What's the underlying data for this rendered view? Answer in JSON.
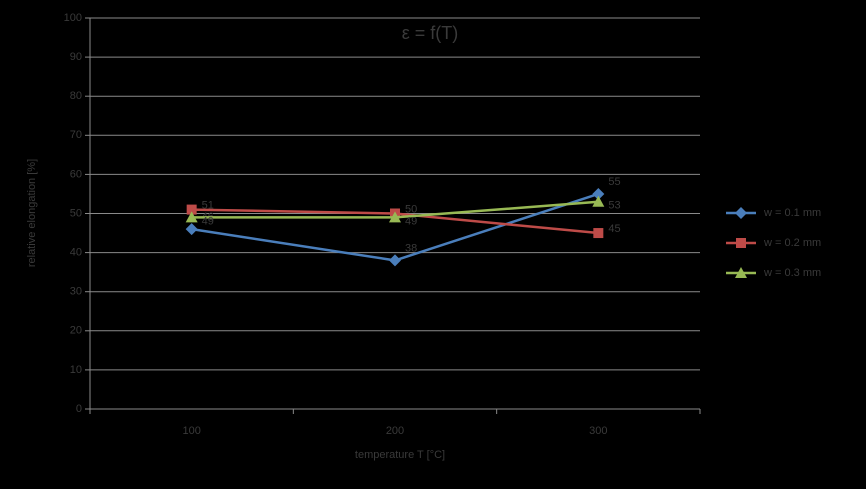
{
  "chart_data": {
    "type": "line",
    "title": "ε = f(T)",
    "x_label": "temperature T [°C]",
    "y_label": "relative elongation [%]",
    "categories": [
      "100",
      "200",
      "300"
    ],
    "series": [
      {
        "name": "w = 0.1 mm",
        "color": "#4a7ebb",
        "marker": "diamond",
        "values": [
          46,
          38,
          55
        ]
      },
      {
        "name": "w = 0.2 mm",
        "color": "#be4b48",
        "marker": "square",
        "values": [
          51,
          50,
          45
        ]
      },
      {
        "name": "w = 0.3 mm",
        "color": "#98b954",
        "marker": "triangle",
        "values": [
          49,
          49,
          53
        ]
      }
    ],
    "ylim": [
      0,
      100
    ],
    "yticks": [
      0,
      10,
      20,
      30,
      40,
      50,
      60,
      70,
      80,
      90,
      100
    ],
    "grid": true,
    "legend": "right"
  }
}
